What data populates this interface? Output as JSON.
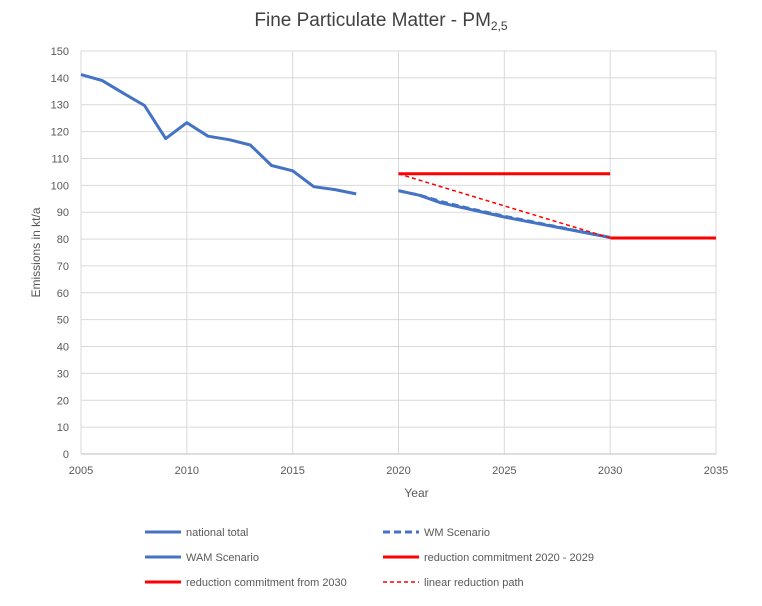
{
  "chart_data": {
    "type": "line",
    "title": "Fine Particulate Matter - PM",
    "title_subscript": "2,5",
    "xlabel": "Year",
    "ylabel": "Emissions in kt/a",
    "xlim": [
      2005,
      2035
    ],
    "ylim": [
      0,
      150
    ],
    "x_ticks": [
      2005,
      2010,
      2015,
      2020,
      2025,
      2030,
      2035
    ],
    "y_ticks": [
      0,
      10,
      20,
      30,
      40,
      50,
      60,
      70,
      80,
      90,
      100,
      110,
      120,
      130,
      140,
      150
    ],
    "grid": true,
    "legend_position": "bottom",
    "series": [
      {
        "name": "national total",
        "color": "#4472C4",
        "style": "solid",
        "points": [
          [
            2005,
            141.2
          ],
          [
            2006,
            139.0
          ],
          [
            2007,
            134.3
          ],
          [
            2008,
            129.7
          ],
          [
            2009,
            117.4
          ],
          [
            2010,
            123.3
          ],
          [
            2011,
            118.3
          ],
          [
            2012,
            117.0
          ],
          [
            2013,
            115.0
          ],
          [
            2014,
            107.4
          ],
          [
            2015,
            105.4
          ],
          [
            2016,
            99.5
          ],
          [
            2017,
            98.4
          ],
          [
            2018,
            96.8
          ]
        ]
      },
      {
        "name": "WM Scenario",
        "color": "#4472C4",
        "style": "dashed",
        "points": [
          [
            2020,
            98.0
          ],
          [
            2021,
            96.3
          ],
          [
            2022,
            94.0
          ],
          [
            2023,
            92.0
          ],
          [
            2025,
            88.5
          ],
          [
            2030,
            80.6
          ]
        ]
      },
      {
        "name": "WAM Scenario",
        "color": "#4472C4",
        "style": "solid",
        "points": [
          [
            2020,
            98.0
          ],
          [
            2021,
            96.3
          ],
          [
            2022,
            93.5
          ],
          [
            2025,
            88.2
          ],
          [
            2030,
            80.6
          ]
        ]
      },
      {
        "name": "reduction commitment 2020 - 2029",
        "color": "#FF0000",
        "style": "solid",
        "points": [
          [
            2020,
            104.3
          ],
          [
            2030,
            104.3
          ]
        ]
      },
      {
        "name": "reduction commitment from 2030",
        "color": "#FF0000",
        "style": "solid",
        "points": [
          [
            2030,
            80.4
          ],
          [
            2035,
            80.4
          ]
        ]
      },
      {
        "name": "linear reduction path",
        "color": "#FF0000",
        "style": "dashed-thin",
        "points": [
          [
            2020,
            104.3
          ],
          [
            2030,
            80.4
          ]
        ]
      }
    ]
  }
}
